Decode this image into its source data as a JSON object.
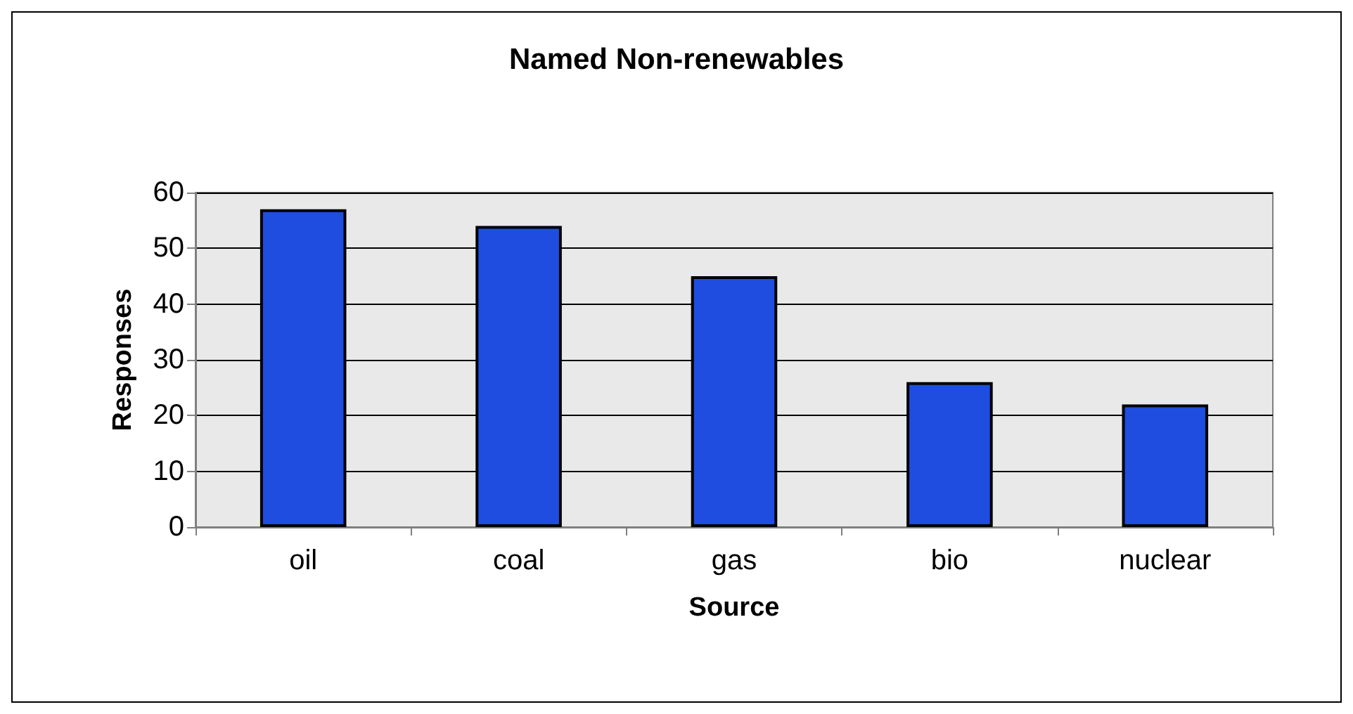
{
  "chart_data": {
    "type": "bar",
    "title": "Named Non-renewables",
    "xlabel": "Source",
    "ylabel": "Responses",
    "categories": [
      "oil",
      "coal",
      "gas",
      "bio",
      "nuclear"
    ],
    "values": [
      57,
      54,
      45,
      26,
      22
    ],
    "color": "#1f4de0",
    "ylim": [
      0,
      60
    ],
    "yticks": [
      0,
      10,
      20,
      30,
      40,
      50,
      60
    ],
    "grid": "y"
  }
}
